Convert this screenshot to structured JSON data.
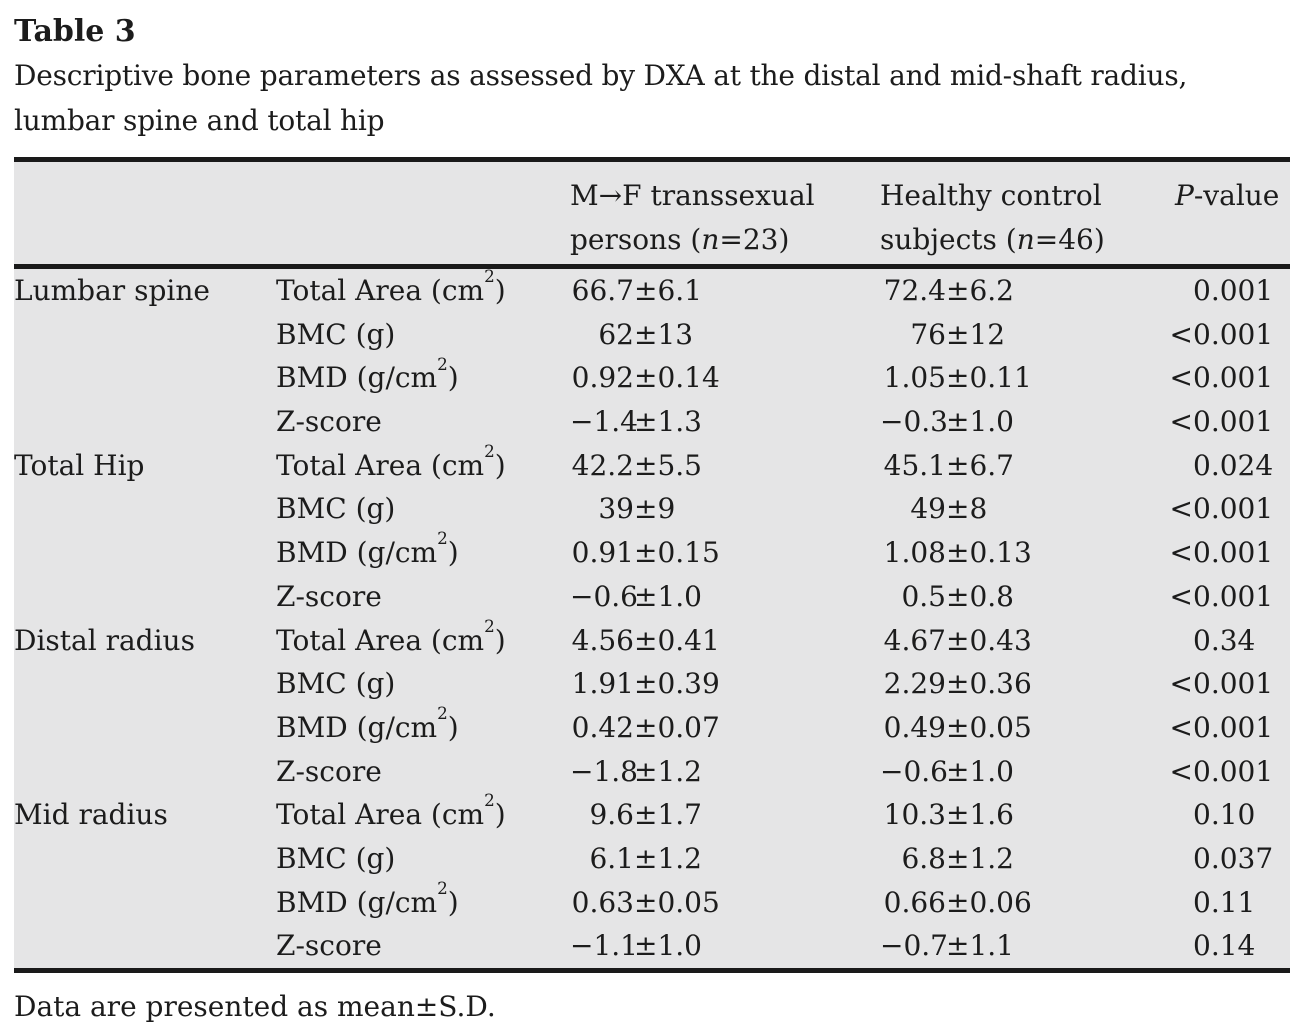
{
  "colors": {
    "page_background": "#ffffff",
    "table_background": "#e5e5e6",
    "rule_color": "#1a1a1a",
    "text_color": "#1c1c1c"
  },
  "title": "Table 3",
  "caption": "Descriptive bone parameters as assessed by DXA at the distal and mid-shaft radius,\nlumbar spine and total hip",
  "footnote": "Data are presented as mean±S.D.",
  "table": {
    "col_headers": [
      "",
      "",
      "M→F transsexual\npersons (*n*=23)",
      "Healthy control\nsubjects (*n*=46)",
      "*P*-value"
    ],
    "groups": [
      {
        "site": "Lumbar spine",
        "rows": [
          {
            "param": "Total Area (cm^2)",
            "transsexual": "66.7±6.1",
            "control": "72.4±6.2",
            "p": "0.001"
          },
          {
            "param": "BMC (g)",
            "transsexual": "62±13",
            "control": "76±12",
            "p": "<0.001"
          },
          {
            "param": "BMD (g/cm^2)",
            "transsexual": "0.92±0.14",
            "control": "1.05±0.11",
            "p": "<0.001"
          },
          {
            "param": "Z-score",
            "transsexual": "−1.4±1.3",
            "control": "−0.3±1.0",
            "p": "<0.001"
          }
        ]
      },
      {
        "site": "Total Hip",
        "rows": [
          {
            "param": "Total Area (cm^2)",
            "transsexual": "42.2±5.5",
            "control": "45.1±6.7",
            "p": "0.024"
          },
          {
            "param": "BMC (g)",
            "transsexual": "39±9",
            "control": "49±8",
            "p": "<0.001"
          },
          {
            "param": "BMD (g/cm^2)",
            "transsexual": "0.91±0.15",
            "control": "1.08±0.13",
            "p": "<0.001"
          },
          {
            "param": "Z-score",
            "transsexual": "−0.6±1.0",
            "control": "0.5±0.8",
            "p": "<0.001"
          }
        ]
      },
      {
        "site": "Distal radius",
        "rows": [
          {
            "param": "Total Area (cm^2)",
            "transsexual": "4.56±0.41",
            "control": "4.67±0.43",
            "p": "0.34"
          },
          {
            "param": "BMC (g)",
            "transsexual": "1.91±0.39",
            "control": "2.29±0.36",
            "p": "<0.001"
          },
          {
            "param": "BMD (g/cm^2)",
            "transsexual": "0.42±0.07",
            "control": "0.49±0.05",
            "p": "<0.001"
          },
          {
            "param": "Z-score",
            "transsexual": "−1.8±1.2",
            "control": "−0.6±1.0",
            "p": "<0.001"
          }
        ]
      },
      {
        "site": "Mid radius",
        "rows": [
          {
            "param": "Total Area (cm^2)",
            "transsexual": "9.6±1.7",
            "control": "10.3±1.6",
            "p": "0.10"
          },
          {
            "param": "BMC (g)",
            "transsexual": "6.1±1.2",
            "control": "6.8±1.2",
            "p": "0.037"
          },
          {
            "param": "BMD (g/cm^2)",
            "transsexual": "0.63±0.05",
            "control": "0.66±0.06",
            "p": "0.11"
          },
          {
            "param": "Z-score",
            "transsexual": "−1.1±1.0",
            "control": "−0.7±1.1",
            "p": "0.14"
          }
        ]
      }
    ]
  }
}
